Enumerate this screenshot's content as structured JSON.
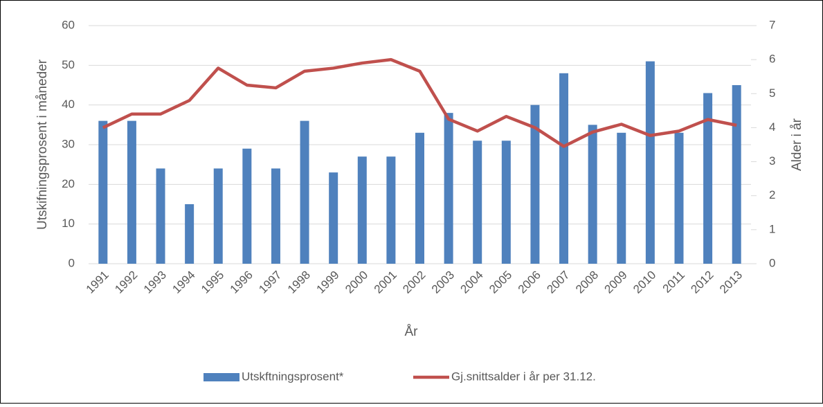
{
  "chart_data": {
    "type": "bar",
    "x_label": "År",
    "y_label": "Utskifningsprosent i måneder",
    "y2_label": "Alder i år",
    "categories": [
      "1991",
      "1992",
      "1993",
      "1994",
      "1995",
      "1996",
      "1997",
      "1998",
      "1999",
      "2000",
      "2001",
      "2002",
      "2003",
      "2004",
      "2005",
      "2006",
      "2007",
      "2008",
      "2009",
      "2010",
      "2011",
      "2012",
      "2013"
    ],
    "series": [
      {
        "name": "Utskftningsprosent*",
        "type": "bar",
        "color": "#4f81bd",
        "values": [
          36,
          36,
          24,
          15,
          24,
          29,
          24,
          36,
          23,
          27,
          27,
          33,
          38,
          31,
          31,
          40,
          48,
          35,
          33,
          51,
          33,
          43,
          45
        ]
      },
      {
        "name": "Gj.snittsalder i år per 31.12.",
        "type": "line",
        "axis": "y2",
        "color": "#c0504d",
        "values": [
          4.0,
          4.4,
          4.4,
          4.8,
          5.75,
          5.25,
          5.17,
          5.66,
          5.75,
          5.9,
          6.0,
          5.66,
          4.25,
          3.9,
          4.33,
          4.0,
          3.45,
          3.87,
          4.1,
          3.77,
          3.9,
          4.24,
          4.07
        ]
      }
    ],
    "ylim": [
      0,
      60
    ],
    "yticks": [
      0,
      10,
      20,
      30,
      40,
      50,
      60
    ],
    "y2lim": [
      0,
      7
    ],
    "y2ticks": [
      0,
      1,
      2,
      3,
      4,
      5,
      6,
      7
    ],
    "grid": true,
    "legend": "bottom"
  }
}
